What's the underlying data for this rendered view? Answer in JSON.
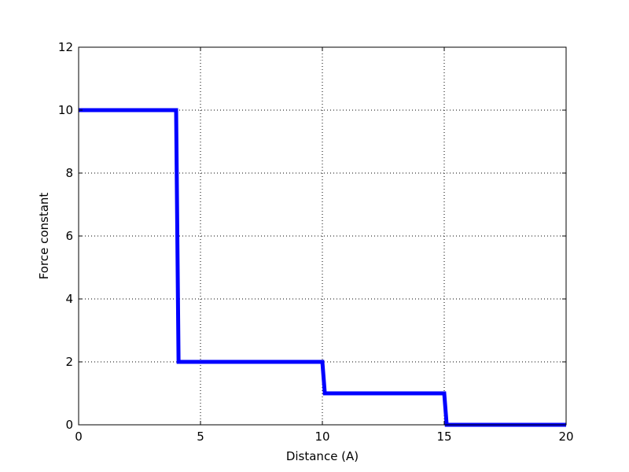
{
  "chart_data": {
    "type": "line",
    "title": "",
    "xlabel": "Distance (A)",
    "ylabel": "Force constant",
    "xlim": [
      0,
      20
    ],
    "ylim": [
      0,
      12
    ],
    "xticks": [
      0,
      5,
      10,
      15,
      20
    ],
    "yticks": [
      0,
      2,
      4,
      6,
      8,
      10,
      12
    ],
    "xtick_labels": [
      "0",
      "5",
      "10",
      "15",
      "20"
    ],
    "ytick_labels": [
      "0",
      "2",
      "4",
      "6",
      "8",
      "10",
      "12"
    ],
    "grid": true,
    "series": [
      {
        "color": "#0000ff",
        "x": [
          0,
          4,
          4.1,
          10,
          10.1,
          15,
          15.1,
          20
        ],
        "y": [
          10,
          10,
          2,
          2,
          1,
          1,
          0,
          0
        ]
      }
    ]
  }
}
